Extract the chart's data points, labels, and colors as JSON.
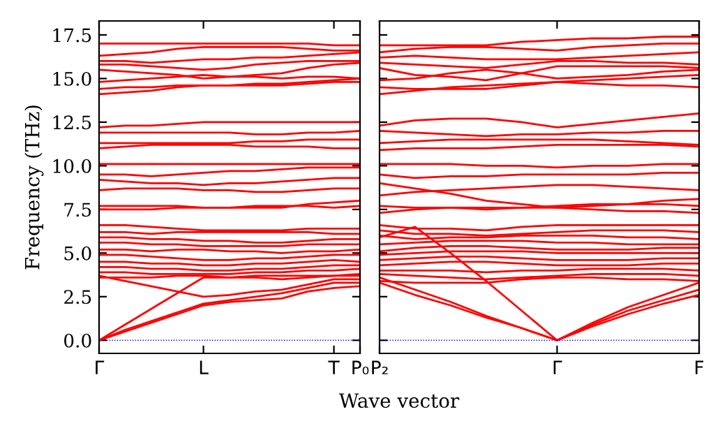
{
  "chart_data": [
    {
      "type": "line",
      "ylabel": "Frequency (THz)",
      "xlabel": "Wave vector",
      "categories": [
        "Γ",
        null,
        null,
        null,
        "L",
        null,
        null,
        null,
        null,
        "T",
        "P₀"
      ],
      "ylim": [
        -0.75,
        18.3
      ],
      "yticks": [
        {
          "value": 0,
          "label": "0.0"
        },
        2.5,
        {
          "value": 5,
          "label": "5.0"
        },
        7.5,
        {
          "value": 10,
          "label": "10.0"
        },
        12.5,
        {
          "value": 15,
          "label": "15.0"
        },
        17.5
      ],
      "grid": false,
      "ref_lines": [
        {
          "axis": "y",
          "value": 0,
          "color": "#0000ff",
          "line_style": "dotted"
        }
      ],
      "series": [
        {
          "color": "#ff0000",
          "values": [
            0,
            0.5,
            1.0,
            1.5,
            2.0,
            2.2,
            2.3,
            2.4,
            2.8,
            3.0,
            3.1
          ]
        },
        {
          "color": "#ff0000",
          "values": [
            0,
            0.6,
            1.1,
            1.6,
            2.1,
            2.3,
            2.5,
            2.7,
            3.0,
            3.3,
            3.3
          ]
        },
        {
          "color": "#ff0000",
          "values": [
            0,
            0.9,
            1.8,
            2.7,
            3.6,
            3.6,
            3.7,
            3.7,
            3.7,
            3.7,
            3.7
          ]
        },
        {
          "color": "#ff0000",
          "values": [
            3.7,
            3.4,
            3.1,
            2.8,
            2.5,
            2.6,
            2.8,
            2.9,
            3.2,
            3.5,
            3.5
          ]
        },
        {
          "color": "#ff0000",
          "values": [
            3.6,
            3.6,
            3.6,
            3.7,
            3.7,
            3.6,
            3.6,
            3.5,
            3.6,
            3.7,
            3.8
          ]
        },
        {
          "color": "#ff0000",
          "values": [
            3.9,
            3.9,
            3.8,
            3.8,
            3.8,
            3.8,
            3.9,
            3.9,
            4.0,
            4.0,
            4.1
          ]
        },
        {
          "color": "#ff0000",
          "values": [
            4.2,
            4.2,
            4.1,
            4.1,
            4.0,
            4.0,
            4.1,
            4.1,
            4.2,
            4.3,
            4.3
          ]
        },
        {
          "color": "#ff0000",
          "values": [
            4.5,
            4.5,
            4.4,
            4.4,
            4.3,
            4.3,
            4.4,
            4.4,
            4.5,
            4.6,
            4.5
          ]
        },
        {
          "color": "#ff0000",
          "values": [
            4.9,
            4.9,
            4.8,
            4.7,
            4.6,
            4.6,
            4.7,
            4.7,
            4.8,
            4.9,
            4.9
          ]
        },
        {
          "color": "#ff0000",
          "values": [
            5.2,
            5.2,
            5.1,
            5.2,
            5.2,
            5.1,
            5.1,
            5.0,
            5.1,
            5.1,
            5.2
          ]
        },
        {
          "color": "#ff0000",
          "values": [
            5.6,
            5.6,
            5.5,
            5.5,
            5.4,
            5.4,
            5.4,
            5.4,
            5.5,
            5.5,
            5.5
          ]
        },
        {
          "color": "#ff0000",
          "values": [
            5.9,
            5.9,
            5.8,
            5.8,
            5.7,
            5.7,
            5.6,
            5.6,
            5.7,
            5.8,
            5.8
          ]
        },
        {
          "color": "#ff0000",
          "values": [
            6.2,
            6.2,
            6.1,
            6.2,
            6.2,
            6.2,
            6.2,
            6.2,
            6.2,
            6.1,
            6.1
          ]
        },
        {
          "color": "#ff0000",
          "values": [
            6.6,
            6.6,
            6.5,
            6.4,
            6.3,
            6.3,
            6.3,
            6.3,
            6.4,
            6.4,
            6.4
          ]
        },
        {
          "color": "#ff0000",
          "values": [
            7.5,
            7.5,
            7.5,
            7.6,
            7.6,
            7.6,
            7.7,
            7.7,
            7.7,
            7.6,
            7.7
          ]
        },
        {
          "color": "#ff0000",
          "values": [
            7.7,
            7.7,
            7.7,
            7.7,
            7.6,
            7.6,
            7.6,
            7.6,
            7.8,
            7.9,
            8.0
          ]
        },
        {
          "color": "#ff0000",
          "values": [
            8.6,
            8.7,
            8.7,
            8.7,
            8.6,
            8.6,
            8.5,
            8.5,
            8.6,
            8.7,
            8.7
          ]
        },
        {
          "color": "#ff0000",
          "values": [
            9.2,
            9.1,
            9.0,
            9.0,
            8.9,
            9.0,
            9.0,
            9.1,
            9.2,
            9.3,
            9.3
          ]
        },
        {
          "color": "#ff0000",
          "values": [
            9.5,
            9.5,
            9.4,
            9.5,
            9.6,
            9.7,
            9.7,
            9.8,
            9.9,
            9.9,
            9.9
          ]
        },
        {
          "color": "#ff0000",
          "values": [
            10.1,
            10.1,
            10.1,
            10.1,
            10.1,
            10.1,
            10.1,
            10.1,
            10.1,
            10.1,
            10.1
          ]
        },
        {
          "color": "#ff0000",
          "values": [
            11.0,
            11.1,
            11.2,
            11.2,
            11.2,
            11.2,
            11.1,
            11.1,
            11.1,
            11.0,
            11.0
          ]
        },
        {
          "color": "#ff0000",
          "values": [
            11.3,
            11.3,
            11.3,
            11.3,
            11.3,
            11.3,
            11.4,
            11.4,
            11.5,
            11.5,
            11.5
          ]
        },
        {
          "color": "#ff0000",
          "values": [
            11.9,
            11.9,
            11.9,
            11.9,
            11.9,
            11.9,
            11.8,
            11.8,
            11.9,
            11.9,
            12.0
          ]
        },
        {
          "color": "#ff0000",
          "values": [
            12.2,
            12.3,
            12.3,
            12.4,
            12.5,
            12.5,
            12.5,
            12.5,
            12.5,
            12.5,
            12.5
          ]
        },
        {
          "color": "#ff0000",
          "values": [
            14.1,
            14.2,
            14.3,
            14.5,
            14.6,
            14.6,
            14.6,
            14.6,
            14.7,
            14.8,
            14.8
          ]
        },
        {
          "color": "#ff0000",
          "values": [
            14.4,
            14.5,
            14.5,
            14.6,
            14.6,
            14.6,
            14.7,
            14.7,
            14.8,
            14.9,
            15.0
          ]
        },
        {
          "color": "#ff0000",
          "values": [
            14.8,
            14.9,
            15.0,
            15.1,
            15.2,
            15.1,
            15.1,
            15.0,
            15.1,
            15.1,
            15.0
          ]
        },
        {
          "color": "#ff0000",
          "values": [
            15.5,
            15.4,
            15.3,
            15.2,
            15.0,
            15.1,
            15.2,
            15.3,
            15.6,
            15.8,
            15.9
          ]
        },
        {
          "color": "#ff0000",
          "values": [
            15.8,
            15.8,
            15.7,
            15.6,
            15.5,
            15.6,
            15.8,
            15.9,
            16.0,
            16.0,
            16.0
          ]
        },
        {
          "color": "#ff0000",
          "values": [
            16.0,
            16.0,
            15.9,
            16.0,
            16.1,
            16.1,
            16.2,
            16.2,
            16.3,
            16.4,
            16.5
          ]
        },
        {
          "color": "#ff0000",
          "values": [
            16.3,
            16.4,
            16.5,
            16.7,
            16.8,
            16.8,
            16.8,
            16.8,
            16.7,
            16.6,
            16.6
          ]
        },
        {
          "color": "#ff0000",
          "values": [
            17.0,
            17.0,
            17.0,
            17.0,
            17.0,
            17.0,
            17.0,
            17.0,
            17.0,
            16.9,
            16.9
          ]
        }
      ]
    },
    {
      "type": "line",
      "tick_labels": "x",
      "categories": [
        "P₂",
        null,
        null,
        null,
        null,
        "Γ",
        null,
        null,
        null,
        "F"
      ],
      "ylim": [
        -0.75,
        18.3
      ],
      "yticks": [
        0,
        2.5,
        5,
        7.5,
        10,
        12.5,
        15,
        17.5
      ],
      "grid": false,
      "ref_lines": [
        {
          "axis": "y",
          "value": 0,
          "color": "#0000ff",
          "line_style": "dotted"
        }
      ],
      "series": [
        {
          "color": "#ff0000",
          "values": [
            3.6,
            2.9,
            2.2,
            1.4,
            0.7,
            0,
            0.8,
            1.5,
            2.1,
            2.6
          ]
        },
        {
          "color": "#ff0000",
          "values": [
            3.3,
            2.6,
            2.0,
            1.3,
            0.7,
            0,
            0.9,
            1.7,
            2.3,
            2.9
          ]
        },
        {
          "color": "#ff0000",
          "values": [
            5.9,
            6.5,
            5.0,
            3.4,
            1.7,
            0,
            1.0,
            1.9,
            2.6,
            3.3
          ]
        },
        {
          "color": "#ff0000",
          "values": [
            3.4,
            3.3,
            3.3,
            3.3,
            3.5,
            3.6,
            3.6,
            3.5,
            3.5,
            3.4
          ]
        },
        {
          "color": "#ff0000",
          "values": [
            3.8,
            3.7,
            3.6,
            3.5,
            3.6,
            3.7,
            3.8,
            3.8,
            3.8,
            3.7
          ]
        },
        {
          "color": "#ff0000",
          "values": [
            4.0,
            4.0,
            4.0,
            3.9,
            4.0,
            4.0,
            4.1,
            4.1,
            4.1,
            4.0
          ]
        },
        {
          "color": "#ff0000",
          "values": [
            4.3,
            4.4,
            4.5,
            4.5,
            4.4,
            4.3,
            4.3,
            4.3,
            4.4,
            4.4
          ]
        },
        {
          "color": "#ff0000",
          "values": [
            4.6,
            4.7,
            4.8,
            4.8,
            4.7,
            4.6,
            4.6,
            4.6,
            4.7,
            4.7
          ]
        },
        {
          "color": "#ff0000",
          "values": [
            4.9,
            5.0,
            5.1,
            5.1,
            5.1,
            5.0,
            5.0,
            5.0,
            5.0,
            5.0
          ]
        },
        {
          "color": "#ff0000",
          "values": [
            5.1,
            5.3,
            5.4,
            5.4,
            5.3,
            5.2,
            5.2,
            5.2,
            5.3,
            5.3
          ]
        },
        {
          "color": "#ff0000",
          "values": [
            5.5,
            5.6,
            5.7,
            5.7,
            5.7,
            5.6,
            5.6,
            5.5,
            5.5,
            5.5
          ]
        },
        {
          "color": "#ff0000",
          "values": [
            6.0,
            5.8,
            5.9,
            5.9,
            6.0,
            6.0,
            6.0,
            5.9,
            5.9,
            5.8
          ]
        },
        {
          "color": "#ff0000",
          "values": [
            6.3,
            6.1,
            6.1,
            6.0,
            6.1,
            6.2,
            6.3,
            6.3,
            6.3,
            6.2
          ]
        },
        {
          "color": "#ff0000",
          "values": [
            6.6,
            6.4,
            6.4,
            6.3,
            6.5,
            6.6,
            6.6,
            6.6,
            6.6,
            6.6
          ]
        },
        {
          "color": "#ff0000",
          "values": [
            7.3,
            7.5,
            7.6,
            7.6,
            7.6,
            7.6,
            7.5,
            7.4,
            7.4,
            7.3
          ]
        },
        {
          "color": "#ff0000",
          "values": [
            7.7,
            7.6,
            7.6,
            7.5,
            7.6,
            7.7,
            7.8,
            7.8,
            7.8,
            7.7
          ]
        },
        {
          "color": "#ff0000",
          "values": [
            8.3,
            8.5,
            8.6,
            8.7,
            8.8,
            8.9,
            8.9,
            8.8,
            8.7,
            8.6
          ]
        },
        {
          "color": "#ff0000",
          "values": [
            9.0,
            8.7,
            8.4,
            8.0,
            7.8,
            7.6,
            7.7,
            7.8,
            8.0,
            8.1
          ]
        },
        {
          "color": "#ff0000",
          "values": [
            9.5,
            9.3,
            9.4,
            9.4,
            9.5,
            9.5,
            9.5,
            9.5,
            9.6,
            9.6
          ]
        },
        {
          "color": "#ff0000",
          "values": [
            10.1,
            10.1,
            10.1,
            10.0,
            10.0,
            9.9,
            10.0,
            10.0,
            10.1,
            10.1
          ]
        },
        {
          "color": "#ff0000",
          "values": [
            10.9,
            11.0,
            11.0,
            11.0,
            11.1,
            11.2,
            11.2,
            11.2,
            11.2,
            11.1
          ]
        },
        {
          "color": "#ff0000",
          "values": [
            11.3,
            11.4,
            11.5,
            11.5,
            11.5,
            11.5,
            11.5,
            11.4,
            11.3,
            11.2
          ]
        },
        {
          "color": "#ff0000",
          "values": [
            12.0,
            11.9,
            11.8,
            11.7,
            11.8,
            11.8,
            11.9,
            11.9,
            12.0,
            12.0
          ]
        },
        {
          "color": "#ff0000",
          "values": [
            12.3,
            12.6,
            12.7,
            12.7,
            12.5,
            12.2,
            12.4,
            12.6,
            12.8,
            13.0
          ]
        },
        {
          "color": "#ff0000",
          "values": [
            14.1,
            14.3,
            14.5,
            14.6,
            14.7,
            14.8,
            14.7,
            14.6,
            14.6,
            14.5
          ]
        },
        {
          "color": "#ff0000",
          "values": [
            14.5,
            14.4,
            14.4,
            14.4,
            14.6,
            14.8,
            14.9,
            15.0,
            15.1,
            15.2
          ]
        },
        {
          "color": "#ff0000",
          "values": [
            14.9,
            15.0,
            15.3,
            15.5,
            15.3,
            15.0,
            15.1,
            15.2,
            15.4,
            15.5
          ]
        },
        {
          "color": "#ff0000",
          "values": [
            15.6,
            15.2,
            15.1,
            14.9,
            15.3,
            15.7,
            15.7,
            15.7,
            15.7,
            15.6
          ]
        },
        {
          "color": "#ff0000",
          "values": [
            15.9,
            15.8,
            15.7,
            15.6,
            15.8,
            16.0,
            16.0,
            15.9,
            15.9,
            15.8
          ]
        },
        {
          "color": "#ff0000",
          "values": [
            16.2,
            16.3,
            16.2,
            16.1,
            16.1,
            16.1,
            16.2,
            16.3,
            16.4,
            16.5
          ]
        },
        {
          "color": "#ff0000",
          "values": [
            16.5,
            16.7,
            16.8,
            16.8,
            16.7,
            16.6,
            16.8,
            16.9,
            17.0,
            17.0
          ]
        },
        {
          "color": "#ff0000",
          "values": [
            16.9,
            16.9,
            16.9,
            16.9,
            17.1,
            17.2,
            17.3,
            17.3,
            17.4,
            17.4
          ]
        }
      ]
    }
  ]
}
